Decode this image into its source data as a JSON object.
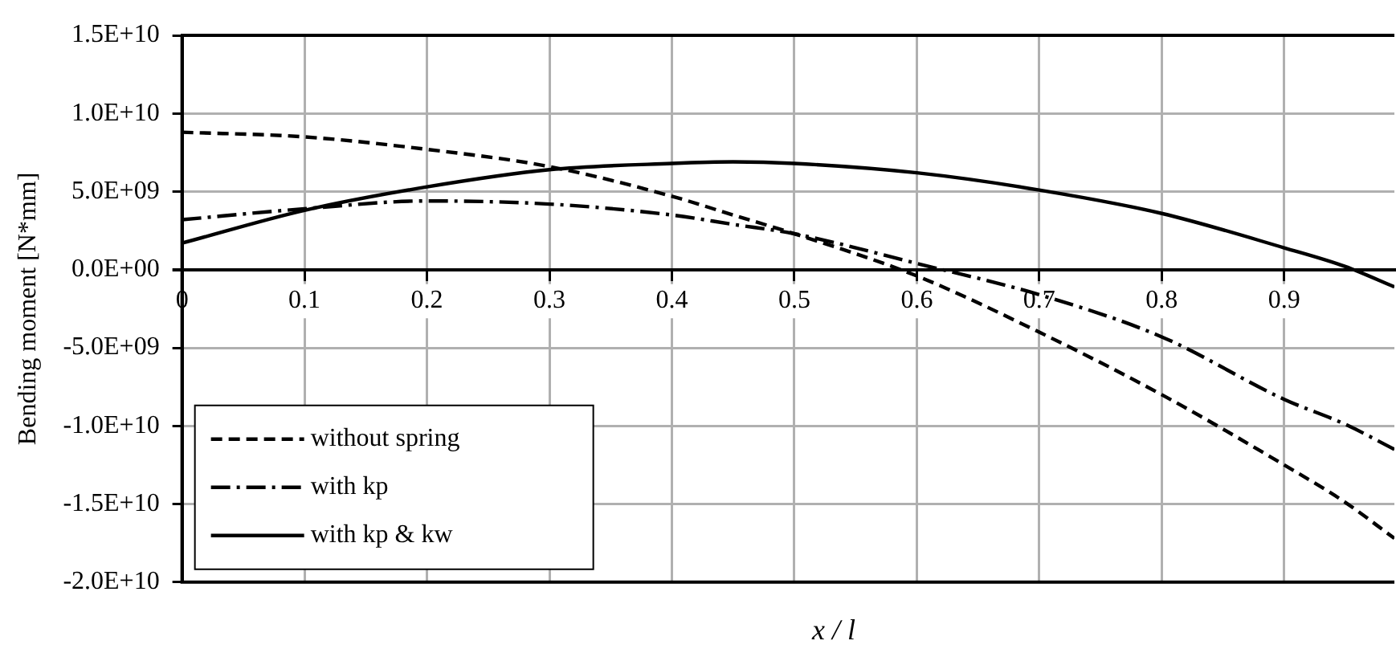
{
  "chart_data": {
    "type": "line",
    "xlabel": "x / l",
    "ylabel": "Bending moment [N*mm]",
    "x": [
      0,
      0.1,
      0.2,
      0.3,
      0.4,
      0.45,
      0.5,
      0.6,
      0.7,
      0.8,
      0.9,
      0.95,
      0.99
    ],
    "series": [
      {
        "name": "without spring",
        "color": "#000000",
        "line_style": "dashed",
        "values": [
          8800000000.0,
          8500000000.0,
          7700000000.0,
          6600000000.0,
          4700000000.0,
          3500000000.0,
          2300000000.0,
          -400000000.0,
          -4000000000.0,
          -8000000000.0,
          -12500000000.0,
          -14900000000.0,
          -17200000000.0
        ]
      },
      {
        "name": "with kp",
        "color": "#000000",
        "line_style": "dashdot",
        "values": [
          3200000000.0,
          3900000000.0,
          4400000000.0,
          4200000000.0,
          3500000000.0,
          2900000000.0,
          2300000000.0,
          400000000.0,
          -1600000000.0,
          -4300000000.0,
          -8300000000.0,
          -9900000000.0,
          -11500000000.0
        ]
      },
      {
        "name": "with kp & kw",
        "color": "#000000",
        "line_style": "solid",
        "values": [
          1700000000.0,
          3800000000.0,
          5300000000.0,
          6400000000.0,
          6800000000.0,
          6900000000.0,
          6800000000.0,
          6200000000.0,
          5100000000.0,
          3600000000.0,
          1400000000.0,
          200000000.0,
          -1100000000.0
        ]
      }
    ],
    "xlim": [
      0,
      0.99
    ],
    "xticks": [
      0,
      0.1,
      0.2,
      0.3,
      0.4,
      0.5,
      0.6,
      0.7,
      0.8,
      0.9
    ],
    "ylim": [
      -20000000000.0,
      15000000000.0
    ],
    "yticks": [
      {
        "value": -20000000000.0,
        "label": "-2.0E+10"
      },
      {
        "value": -15000000000.0,
        "label": "-1.5E+10"
      },
      {
        "value": -10000000000.0,
        "label": "-1.0E+10"
      },
      {
        "value": -5000000000.0,
        "label": "-5.0E+09"
      },
      {
        "value": 0,
        "label": "0.0E+00"
      },
      {
        "value": 5000000000.0,
        "label": "5.0E+09"
      },
      {
        "value": 10000000000.0,
        "label": "1.0E+10"
      },
      {
        "value": 15000000000.0,
        "label": "1.5E+10"
      }
    ],
    "grid": true,
    "legend": "bottom left",
    "marker": "none"
  }
}
